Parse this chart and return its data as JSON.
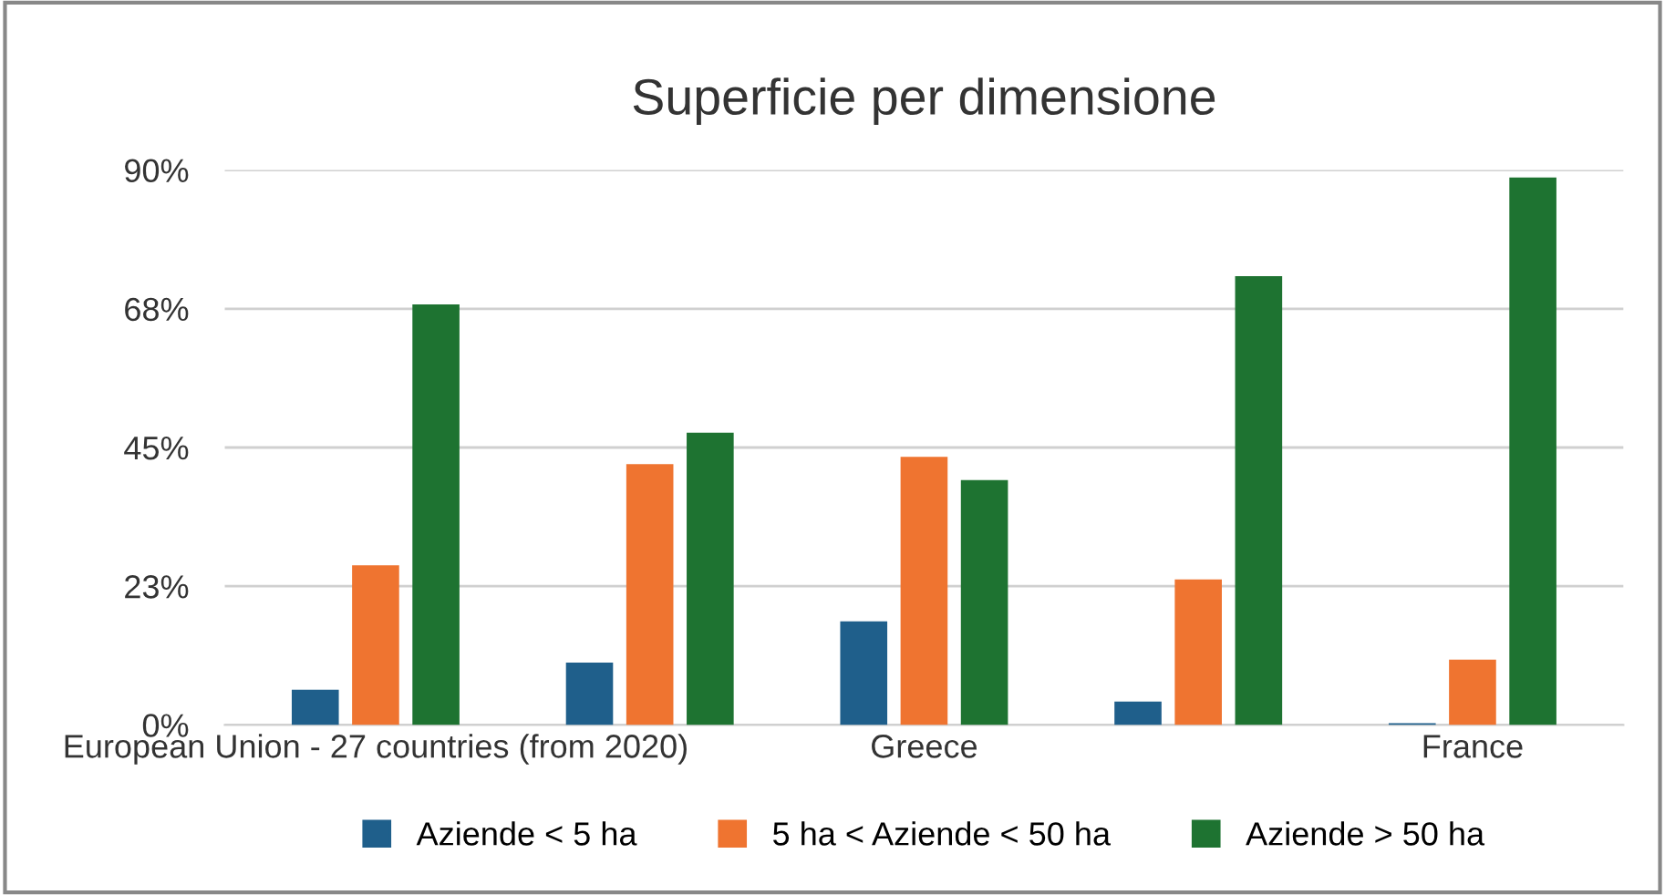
{
  "chart_data": {
    "type": "bar",
    "title": "Superficie per dimensione",
    "categories": [
      "European Union - 27 countries (from 2020)",
      null,
      "Greece",
      null,
      "France"
    ],
    "series": [
      {
        "name": "Aziende < 5 ha",
        "color": "#1f5f8b",
        "values": [
          5.7,
          10.1,
          16.8,
          3.8,
          0.3
        ]
      },
      {
        "name": "5 ha < Aziende < 50 ha",
        "color": "#ef7430",
        "values": [
          25.9,
          42.3,
          43.5,
          23.6,
          10.6
        ]
      },
      {
        "name": "Aziende > 50 ha",
        "color": "#1e7331",
        "values": [
          68.2,
          47.4,
          39.7,
          72.8,
          88.8
        ]
      }
    ],
    "ylim": [
      0,
      90
    ],
    "yticks": [
      {
        "value": 0,
        "label": "0%"
      },
      {
        "value": 22.5,
        "label": "23%"
      },
      {
        "value": 45,
        "label": "45%"
      },
      {
        "value": 67.5,
        "label": "68%"
      },
      {
        "value": 90,
        "label": "90%"
      }
    ],
    "grid": "y",
    "legend": "bottom"
  }
}
